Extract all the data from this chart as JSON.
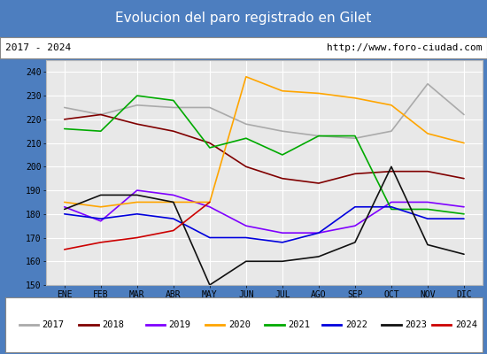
{
  "title": "Evolucion del paro registrado en Gilet",
  "title_bg": "#4d7ebf",
  "subtitle_left": "2017 - 2024",
  "subtitle_right": "http://www.foro-ciudad.com",
  "months": [
    "ENE",
    "FEB",
    "MAR",
    "ABR",
    "MAY",
    "JUN",
    "JUL",
    "AGO",
    "SEP",
    "OCT",
    "NOV",
    "DIC"
  ],
  "ylim": [
    150,
    245
  ],
  "yticks": [
    150,
    160,
    170,
    180,
    190,
    200,
    210,
    220,
    230,
    240
  ],
  "series": {
    "2017": {
      "color": "#aaaaaa",
      "data": [
        225,
        222,
        226,
        225,
        225,
        218,
        215,
        213,
        212,
        215,
        235,
        222
      ]
    },
    "2018": {
      "color": "#800000",
      "data": [
        220,
        222,
        218,
        215,
        210,
        200,
        195,
        193,
        197,
        198,
        198,
        195
      ]
    },
    "2019": {
      "color": "#7f00ff",
      "data": [
        183,
        177,
        190,
        188,
        183,
        175,
        172,
        172,
        175,
        185,
        185,
        183
      ]
    },
    "2020": {
      "color": "#ffa500",
      "data": [
        185,
        183,
        185,
        185,
        185,
        238,
        232,
        231,
        229,
        226,
        214,
        210
      ]
    },
    "2021": {
      "color": "#00aa00",
      "data": [
        216,
        215,
        230,
        228,
        208,
        212,
        205,
        213,
        213,
        182,
        182,
        180
      ]
    },
    "2022": {
      "color": "#0000dd",
      "data": [
        180,
        178,
        180,
        178,
        170,
        170,
        168,
        172,
        183,
        183,
        178,
        178
      ]
    },
    "2023": {
      "color": "#111111",
      "data": [
        182,
        188,
        188,
        185,
        150,
        160,
        160,
        162,
        168,
        200,
        167,
        163
      ]
    },
    "2024": {
      "color": "#cc0000",
      "data": [
        165,
        168,
        170,
        173,
        185,
        null,
        null,
        null,
        null,
        null,
        null,
        null
      ]
    }
  },
  "legend_order": [
    "2017",
    "2018",
    "2019",
    "2020",
    "2021",
    "2022",
    "2023",
    "2024"
  ]
}
